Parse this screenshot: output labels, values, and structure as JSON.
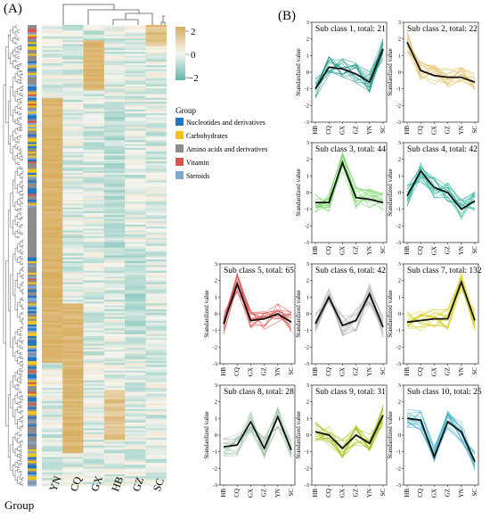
{
  "panel_a": {
    "label": "(A)",
    "columns": [
      "YN",
      "CQ",
      "GX",
      "HB",
      "GZ",
      "SC"
    ],
    "color_scale": {
      "ticks": [
        "2",
        "0",
        "−2"
      ],
      "high": "#d7ad5f",
      "mid": "#f7f5ef",
      "low": "#5fb8ad"
    },
    "group_axis_label": "Group",
    "legend": {
      "title": "Group",
      "items": [
        {
          "label": "Nucleotides and derivatives",
          "color": "#1f77c4"
        },
        {
          "label": "Carbohydrates",
          "color": "#f0c419"
        },
        {
          "label": "Amino acids and derivatives",
          "color": "#8c8c8c"
        },
        {
          "label": "Vitamin",
          "color": "#d9534f"
        },
        {
          "label": "Steroids",
          "color": "#7fa6d9"
        }
      ]
    }
  },
  "panel_b": {
    "label": "(B)",
    "x_categories": [
      "HB",
      "CQ",
      "GX",
      "GZ",
      "YN",
      "SC"
    ],
    "y_ticks": [
      "-3",
      "-2",
      "-1",
      "0",
      "1",
      "2",
      "3"
    ],
    "y_label": "Standardized value"
  },
  "chart_data": {
    "type": "line",
    "categories": [
      "HB",
      "CQ",
      "GX",
      "GZ",
      "YN",
      "SC"
    ],
    "ylim": [
      -3,
      3
    ],
    "ylabel": "Standardized value",
    "series": [
      {
        "name": "Sub class 1, total: 21",
        "color": "#1f9a8a",
        "values": [
          -1.0,
          0.3,
          0.2,
          -0.1,
          -0.6,
          1.4
        ]
      },
      {
        "name": "Sub class 2, total: 22",
        "color": "#e3c36a",
        "values": [
          1.8,
          0.1,
          -0.2,
          -0.3,
          -0.3,
          -0.6
        ]
      },
      {
        "name": "Sub class 3, total: 44",
        "color": "#7ad66a",
        "values": [
          -0.6,
          -0.6,
          1.8,
          -0.3,
          -0.4,
          -0.6
        ]
      },
      {
        "name": "Sub class 4, total: 42",
        "color": "#2bb59a",
        "values": [
          -0.2,
          1.3,
          0.3,
          0.0,
          -1.0,
          -0.5
        ]
      },
      {
        "name": "Sub class 5, total: 65",
        "color": "#d9534f",
        "values": [
          -0.6,
          1.8,
          -0.4,
          -0.3,
          0.0,
          -0.5
        ]
      },
      {
        "name": "Sub class 6, total: 42",
        "color": "#b3b3b3",
        "values": [
          -0.6,
          1.0,
          -0.7,
          -0.4,
          1.2,
          -0.8
        ]
      },
      {
        "name": "Sub class 7, total: 132",
        "color": "#d6cf1f",
        "values": [
          -0.5,
          -0.4,
          -0.3,
          -0.3,
          1.9,
          -0.4
        ]
      },
      {
        "name": "Sub class 8, total: 28",
        "color": "#9fc4a8",
        "values": [
          -0.7,
          -0.6,
          0.8,
          -0.8,
          1.1,
          -0.9
        ]
      },
      {
        "name": "Sub class 9, total: 31",
        "color": "#a5c51e",
        "values": [
          0.2,
          0.0,
          -0.8,
          0.0,
          -0.5,
          1.2
        ]
      },
      {
        "name": "Sub class 10, total: 25",
        "color": "#4bb4c8",
        "values": [
          1.0,
          0.9,
          -1.3,
          0.8,
          0.2,
          -1.6
        ]
      }
    ]
  }
}
